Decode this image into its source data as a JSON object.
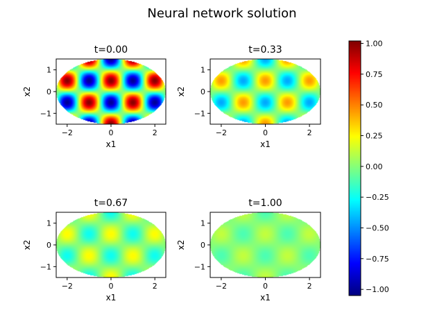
{
  "figure_title": "Neural network solution",
  "chart_data": {
    "type": "heatmap",
    "panels": [
      {
        "title": "t=0.00",
        "t": 0.0,
        "amplitude": 1.0
      },
      {
        "title": "t=0.33",
        "t": 0.33,
        "amplitude": 0.45
      },
      {
        "title": "t=0.67",
        "t": 0.67,
        "amplitude": 0.25
      },
      {
        "title": "t=1.00",
        "t": 1.0,
        "amplitude": 0.12
      }
    ],
    "field": "amplitude * cos(pi*x1) * sin(pi*x2), masked to ellipse (x1/2.5)^2 + (x2/1.5)^2 <= 1",
    "xlabel": "x1",
    "ylabel": "x2",
    "xlim": [
      -2.5,
      2.5
    ],
    "ylim": [
      -1.5,
      1.5
    ],
    "xticks": [
      -2,
      0,
      2
    ],
    "yticks": [
      -1,
      0,
      1
    ],
    "xtick_labels": [
      "−2",
      "0",
      "2"
    ],
    "ytick_labels": [
      "−1",
      "0",
      "1"
    ],
    "colorbar": {
      "colormap": "jet",
      "vmin": -1.05,
      "vmax": 1.02,
      "ticks": [
        1.0,
        0.75,
        0.5,
        0.25,
        0.0,
        -0.25,
        -0.5,
        -0.75,
        -1.0
      ],
      "tick_labels": [
        "1.00",
        "0.75",
        "0.50",
        "0.25",
        "0.00",
        "−0.25",
        "−0.50",
        "−0.75",
        "−1.00"
      ]
    }
  }
}
